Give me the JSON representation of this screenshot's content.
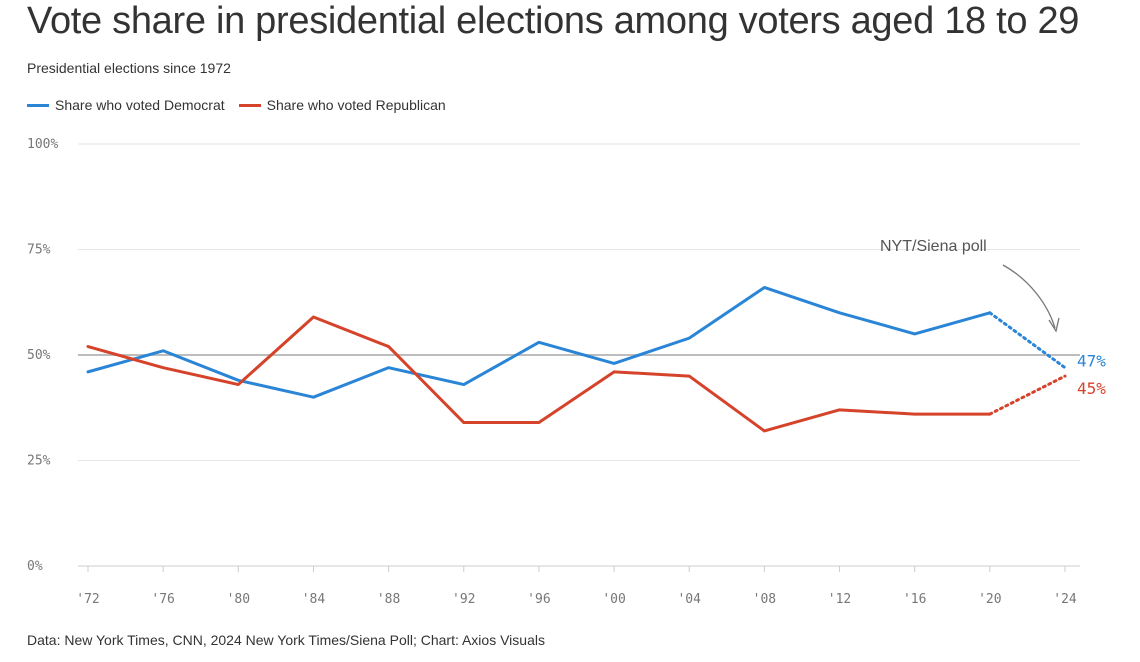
{
  "title": "Vote share in presidential elections among voters aged 18 to 29",
  "subtitle": "Presidential elections since 1972",
  "source": "Data: New York Times, CNN, 2024 New York Times/Siena Poll; Chart: Axios Visuals",
  "colors": {
    "democrat": "#2a85d6",
    "republican": "#d5432a",
    "grid": "#e6e6e6",
    "midline": "#bdbdbd"
  },
  "chart_data": {
    "type": "line",
    "categories": [
      "'72",
      "'76",
      "'80",
      "'84",
      "'88",
      "'92",
      "'96",
      "'00",
      "'04",
      "'08",
      "'12",
      "'16",
      "'20",
      "'24"
    ],
    "y_ticks": [
      "0%",
      "25%",
      "50%",
      "75%",
      "100%"
    ],
    "ylim": [
      0,
      100
    ],
    "grid": true,
    "legend_position": "top-left",
    "series": [
      {
        "name": "Share who voted Democrat",
        "key": "democrat",
        "values": [
          46,
          51,
          44,
          40,
          47,
          43,
          53,
          48,
          54,
          66,
          60,
          55,
          60,
          47
        ],
        "end_label": "47%"
      },
      {
        "name": "Share who voted Republican",
        "key": "republican",
        "values": [
          52,
          47,
          43,
          59,
          52,
          34,
          34,
          46,
          45,
          32,
          37,
          36,
          36,
          45
        ],
        "end_label": "45%"
      }
    ],
    "poll_start_index": 12,
    "annotation": "NYT/Siena poll"
  }
}
